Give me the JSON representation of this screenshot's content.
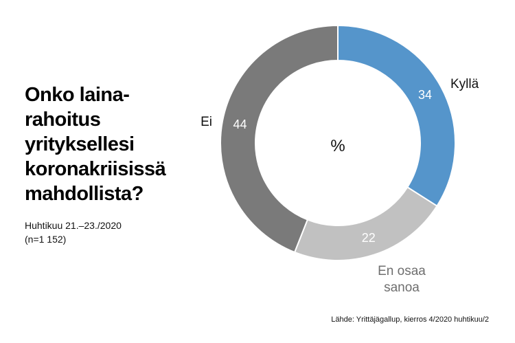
{
  "title_lines": [
    "Onko laina-",
    "rahoitus",
    "yrityksellesi",
    "koronakriisissä",
    "mahdollista?"
  ],
  "subtitle_lines": [
    "Huhtikuu 21.–23./2020",
    "(n=1 152)"
  ],
  "center_label": "%",
  "source": "Lähde: Yrittäjägallup, kierros 4/2020 huhtikuu/2",
  "chart_data": {
    "type": "pie",
    "variant": "donut",
    "unit": "%",
    "start": "top, clockwise",
    "categories": [
      "Kyllä",
      "En osaa sanoa",
      "Ei"
    ],
    "category_label_lines": [
      [
        "Kyllä"
      ],
      [
        "En osaa",
        "sanoa"
      ],
      [
        "Ei"
      ]
    ],
    "values": [
      34,
      22,
      44
    ],
    "colors": [
      "#5595cb",
      "#c1c1c1",
      "#7a7a7a"
    ],
    "label_colors": [
      "#111111",
      "#6e6e6e",
      "#111111"
    ]
  }
}
